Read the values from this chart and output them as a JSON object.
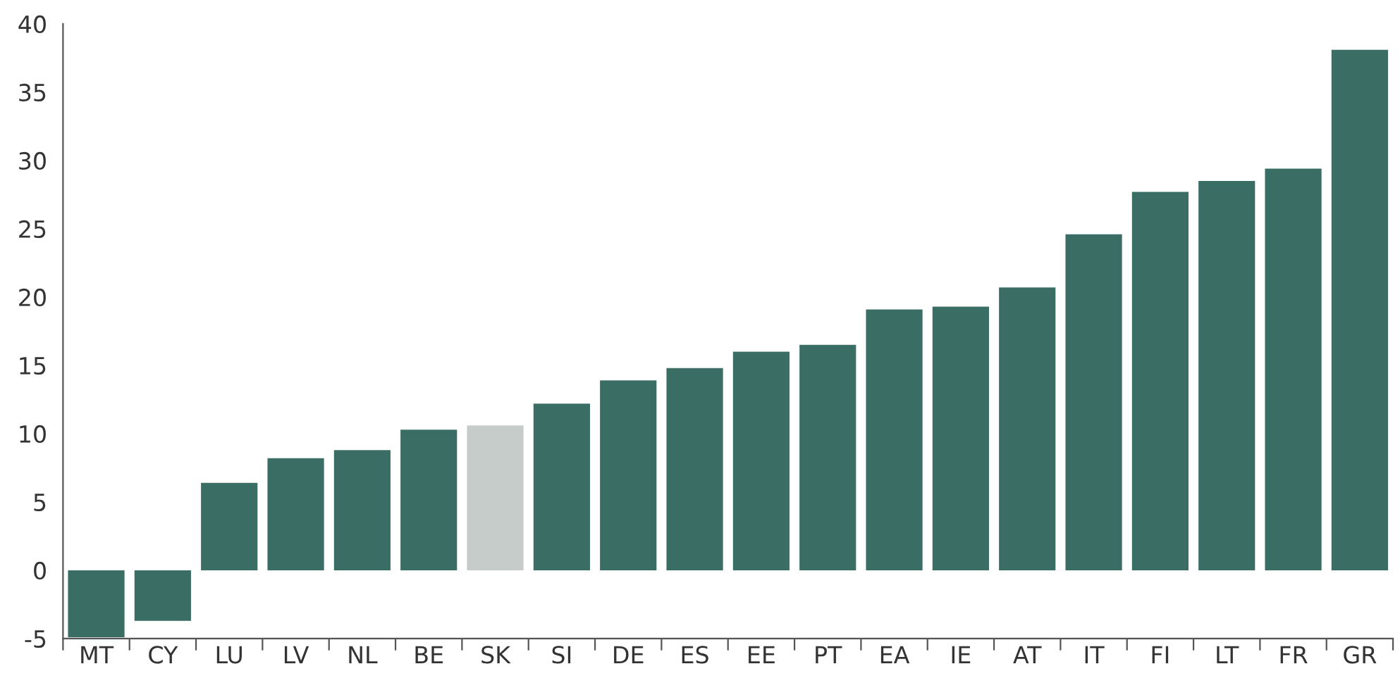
{
  "chart_data": {
    "type": "bar",
    "categories": [
      "MT",
      "CY",
      "LU",
      "LV",
      "NL",
      "BE",
      "SK",
      "SI",
      "DE",
      "ES",
      "EE",
      "PT",
      "EA",
      "IE",
      "AT",
      "IT",
      "FI",
      "LT",
      "FR",
      "GR"
    ],
    "values": [
      -4.9,
      -3.7,
      6.4,
      8.2,
      8.8,
      10.3,
      10.6,
      12.2,
      13.9,
      14.8,
      16.0,
      16.5,
      19.1,
      19.3,
      20.7,
      24.6,
      27.7,
      28.5,
      29.4,
      38.1
    ],
    "colors": [
      "#3a6e65",
      "#3a6e65",
      "#3a6e65",
      "#3a6e65",
      "#3a6e65",
      "#3a6e65",
      "#c5ccc9",
      "#3a6e65",
      "#3a6e65",
      "#3a6e65",
      "#3a6e65",
      "#3a6e65",
      "#3a6e65",
      "#3a6e65",
      "#3a6e65",
      "#3a6e65",
      "#3a6e65",
      "#3a6e65",
      "#3a6e65",
      "#3a6e65"
    ],
    "ylim": [
      -5,
      40
    ],
    "yticks": [
      {
        "value": -5,
        "label": "-5"
      },
      0,
      5,
      10,
      15,
      20,
      25,
      30,
      35,
      40
    ],
    "grid": false
  }
}
